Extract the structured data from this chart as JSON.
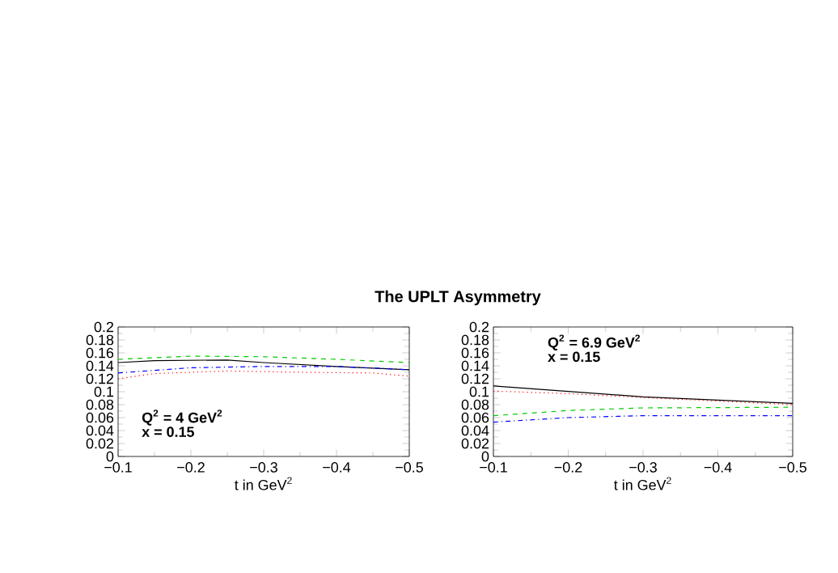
{
  "chart_data": [
    {
      "type": "line",
      "title": "The UPLT Asymmetry",
      "xlabel": "t in GeV$^{2}$",
      "annotations": [
        "Q$^{2}$ = 4 GeV$^{2}$",
        "x = 0.15"
      ],
      "xlim": [
        -0.1,
        -0.5
      ],
      "xticks": [
        {
          "value": -0.1,
          "label": "−0.1"
        },
        {
          "value": -0.2,
          "label": "−0.2"
        },
        {
          "value": -0.3,
          "label": "−0.3"
        },
        {
          "value": -0.4,
          "label": "−0.4"
        },
        {
          "value": -0.5,
          "label": "−0.5"
        }
      ],
      "ylim": [
        0,
        0.2
      ],
      "yticks": [
        0,
        0.02,
        0.04,
        0.06,
        0.08,
        0.1,
        0.12,
        0.14,
        0.16,
        0.18,
        0.2
      ],
      "series": [
        {
          "color": "#000000",
          "line_style": "solid",
          "x": [
            -0.1,
            -0.15,
            -0.25,
            -0.3,
            -0.4,
            -0.5
          ],
          "values": [
            0.145,
            0.148,
            0.149,
            0.145,
            0.139,
            0.134
          ]
        },
        {
          "color": "#00cc00",
          "line_style": "dashed",
          "x": [
            -0.1,
            -0.2,
            -0.3,
            -0.4,
            -0.5
          ],
          "values": [
            0.15,
            0.155,
            0.154,
            0.15,
            0.145
          ]
        },
        {
          "color": "#0000ff",
          "line_style": "dashdot",
          "x": [
            -0.1,
            -0.2,
            -0.3,
            -0.4,
            -0.5
          ],
          "values": [
            0.129,
            0.137,
            0.139,
            0.139,
            0.134
          ]
        },
        {
          "color": "#ff0000",
          "line_style": "dotted",
          "x": [
            -0.1,
            -0.15,
            -0.25,
            -0.35,
            -0.45,
            -0.5
          ],
          "values": [
            0.12,
            0.128,
            0.132,
            0.13,
            0.129,
            0.124
          ]
        }
      ]
    },
    {
      "type": "line",
      "xlabel": "t in GeV$^{2}$",
      "annotations": [
        "Q$^{2}$ = 6.9 GeV$^{2}$",
        "x = 0.15"
      ],
      "xlim": [
        -0.1,
        -0.5
      ],
      "xticks": [
        {
          "value": -0.1,
          "label": "−0.1"
        },
        {
          "value": -0.2,
          "label": "−0.2"
        },
        {
          "value": -0.3,
          "label": "−0.3"
        },
        {
          "value": -0.4,
          "label": "−0.4"
        },
        {
          "value": -0.5,
          "label": "−0.5"
        }
      ],
      "ylim": [
        0,
        0.2
      ],
      "yticks": [
        0,
        0.02,
        0.04,
        0.06,
        0.08,
        0.1,
        0.12,
        0.14,
        0.16,
        0.18,
        0.2
      ],
      "series": [
        {
          "color": "#000000",
          "line_style": "solid",
          "x": [
            -0.1,
            -0.3,
            -0.5
          ],
          "values": [
            0.109,
            0.092,
            0.082
          ]
        },
        {
          "color": "#ff0000",
          "line_style": "dotted",
          "x": [
            -0.1,
            -0.2,
            -0.3,
            -0.5
          ],
          "values": [
            0.101,
            0.097,
            0.091,
            0.08
          ]
        },
        {
          "color": "#00cc00",
          "line_style": "dashed",
          "x": [
            -0.1,
            -0.2,
            -0.3,
            -0.5
          ],
          "values": [
            0.063,
            0.071,
            0.075,
            0.076
          ]
        },
        {
          "color": "#0000ff",
          "line_style": "dashdot",
          "x": [
            -0.1,
            -0.2,
            -0.3,
            -0.5
          ],
          "values": [
            0.053,
            0.06,
            0.063,
            0.063
          ]
        }
      ]
    }
  ]
}
